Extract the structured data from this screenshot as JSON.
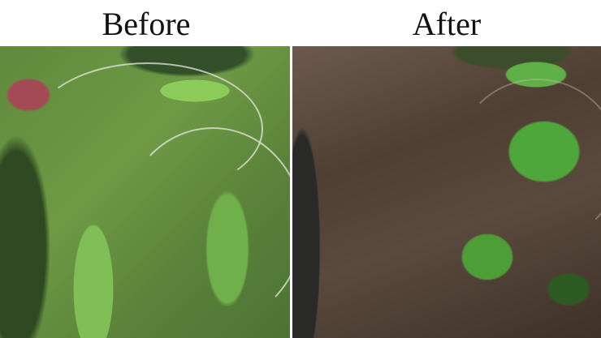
{
  "titles": {
    "before": "Before",
    "after": "After"
  }
}
